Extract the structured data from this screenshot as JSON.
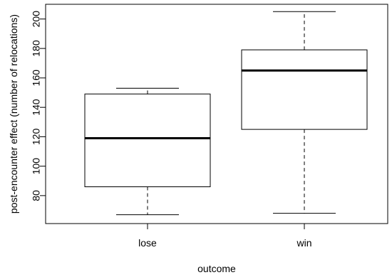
{
  "chart_data": {
    "type": "box",
    "title": "",
    "xlabel": "outcome",
    "ylabel": "post-encounter effect (number of relocations)",
    "categories": [
      "lose",
      "win"
    ],
    "boxes": [
      {
        "name": "lose",
        "whisker_low": 67,
        "q1": 86,
        "median": 119,
        "q3": 149,
        "whisker_high": 153
      },
      {
        "name": "win",
        "whisker_low": 68,
        "q1": 125,
        "median": 165,
        "q3": 179,
        "whisker_high": 205
      }
    ],
    "yticks": [
      80,
      100,
      120,
      140,
      160,
      180,
      200
    ],
    "ylim": [
      61,
      210
    ],
    "grid": false,
    "legend": "none"
  }
}
